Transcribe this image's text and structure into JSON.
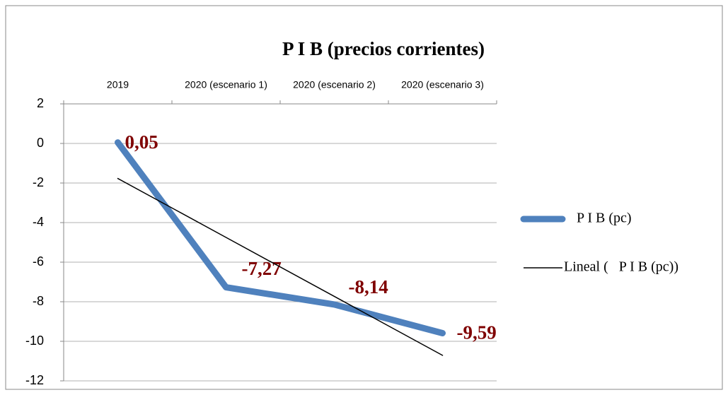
{
  "chart_data": {
    "type": "line",
    "title": "P I B (precios corrientes)",
    "categories": [
      "2019",
      "2020 (escenario 1)",
      "2020 (escenario 2)",
      "2020 (escenario 3)"
    ],
    "series": [
      {
        "name": "P I B (pc)",
        "color": "#4f81bd",
        "values": [
          0.05,
          -7.27,
          -8.14,
          -9.59
        ],
        "value_labels": [
          "0,05",
          "-7,27",
          "-8,14",
          "-9,59"
        ]
      },
      {
        "name": "Lineal (   P I B (pc))",
        "color": "#000000",
        "values": [
          -1.77,
          -4.75,
          -7.73,
          -10.71
        ]
      }
    ],
    "ylim": [
      -12,
      2
    ],
    "yticks": [
      -12,
      -10,
      -8,
      -6,
      -4,
      -2,
      0,
      2
    ],
    "grid": true,
    "legend": "right"
  }
}
